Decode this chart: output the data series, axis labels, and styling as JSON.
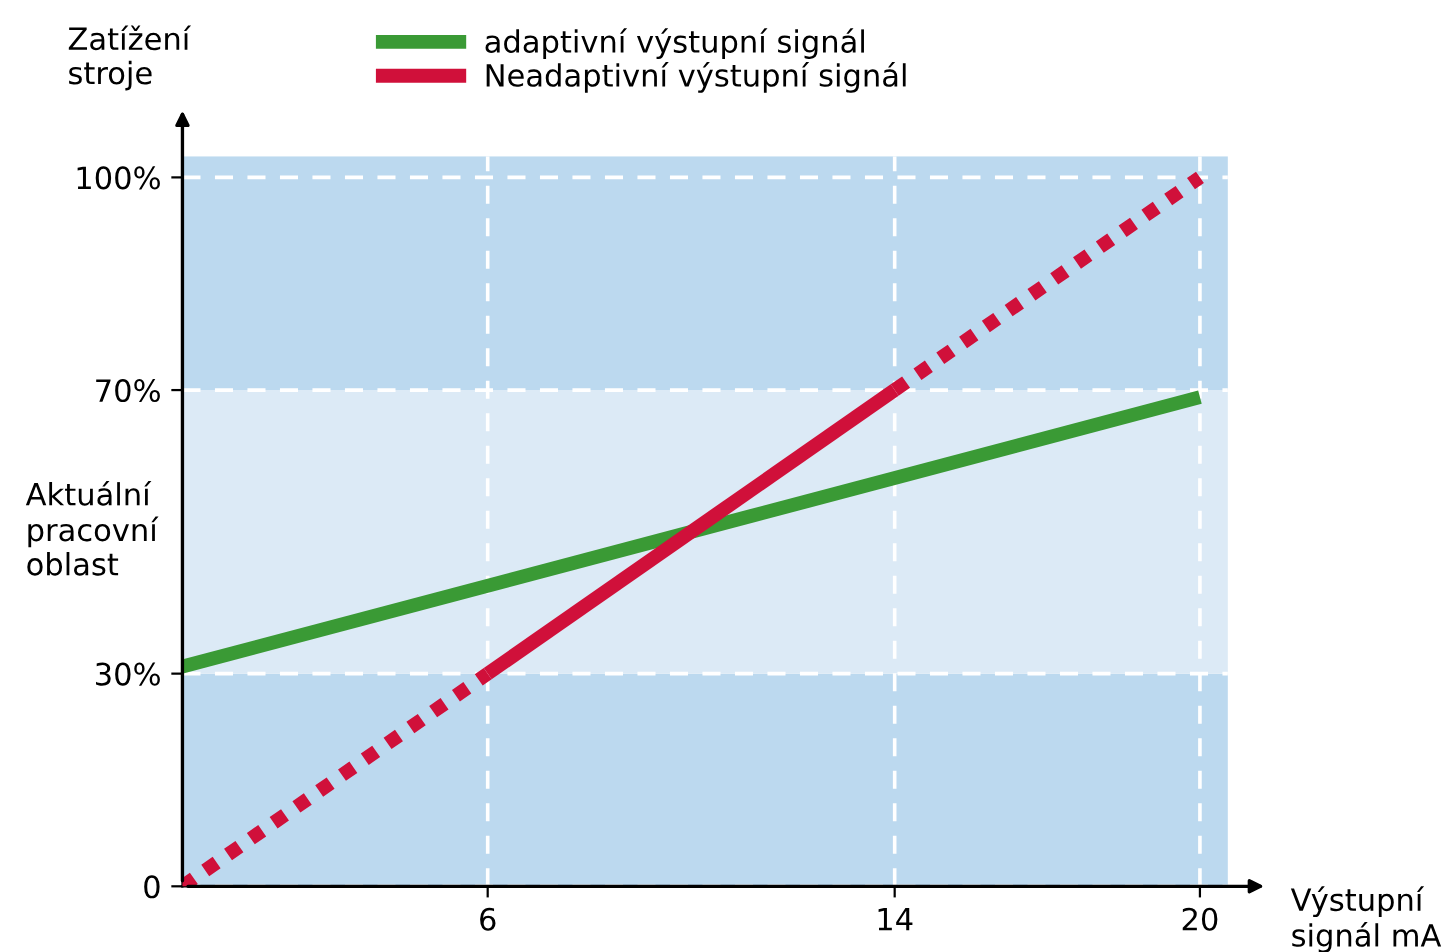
{
  "chart_data": {
    "type": "line",
    "ylabel": "Zatížení\nstroje",
    "xlabel": "Výstupní\nsignál mA",
    "xlim": [
      0,
      20.55
    ],
    "xticks": [
      6,
      14,
      20
    ],
    "ylim": [
      0,
      103
    ],
    "yticks": [
      0,
      {
        "value": 30,
        "label": "30%"
      },
      {
        "value": 70,
        "label": "70%"
      },
      {
        "value": 100,
        "label": "100%"
      }
    ],
    "grid": true,
    "legend": "top",
    "bands": [
      {
        "axis": "y",
        "from": 0,
        "to": 30,
        "color": "#bcd9ef"
      },
      {
        "axis": "y",
        "from": 30,
        "to": 70,
        "color": "#dceaf6",
        "label": "Aktuální\npracovní\noblast"
      },
      {
        "axis": "y",
        "from": 70,
        "to": 103,
        "color": "#bcd9ef"
      }
    ],
    "series": [
      {
        "name": "adaptivní výstupní signál",
        "color": "#3a9a35",
        "x": [
          0,
          20
        ],
        "values": [
          31,
          69
        ],
        "line_style": "solid"
      },
      {
        "name": "Neadaptivní výstupní signál",
        "color": "#d0103a",
        "x": [
          6,
          14
        ],
        "values": [
          30,
          70
        ],
        "line_style": "solid"
      },
      {
        "color": "#d0103a",
        "x": [
          0,
          6
        ],
        "values": [
          0,
          30
        ],
        "line_style": "dotted"
      },
      {
        "color": "#d0103a",
        "x": [
          14,
          20
        ],
        "values": [
          70,
          100
        ],
        "line_style": "dotted"
      }
    ]
  }
}
